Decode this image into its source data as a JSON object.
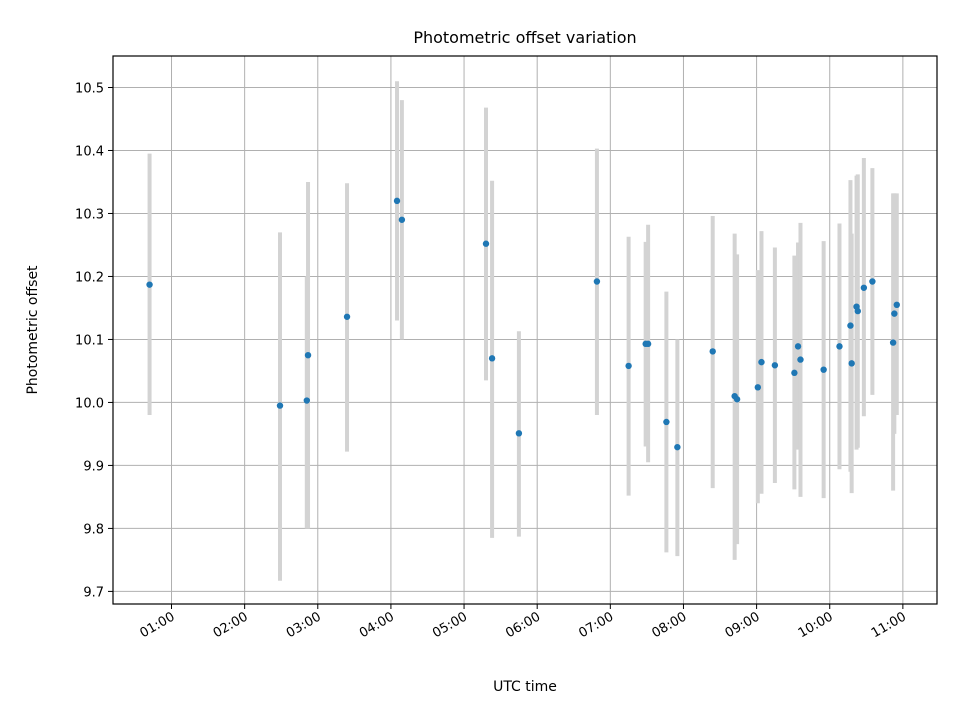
{
  "chart_data": {
    "type": "scatter",
    "title": "Photometric offset variation",
    "xlabel": "UTC time",
    "ylabel": "Photometric offset",
    "x_unit": "hours UTC",
    "xlim": [
      "00:12",
      "11:28"
    ],
    "ylim": [
      9.68,
      10.55
    ],
    "x_ticks": [
      "01:00",
      "02:00",
      "03:00",
      "04:00",
      "05:00",
      "06:00",
      "07:00",
      "08:00",
      "09:00",
      "10:00",
      "11:00"
    ],
    "y_ticks": [
      "9.7",
      "9.8",
      "9.9",
      "10.0",
      "10.1",
      "10.2",
      "10.3",
      "10.4",
      "10.5"
    ],
    "grid": true,
    "x_tick_rotation": 30,
    "colors": {
      "point": "#1f77b4",
      "errorbar": "#d3d3d3",
      "grid": "#b0b0b0"
    },
    "points": [
      {
        "x": "00:42",
        "y": 10.187,
        "ylo": 9.98,
        "yhi": 10.395
      },
      {
        "x": "02:29",
        "y": 9.995,
        "ylo": 9.717,
        "yhi": 10.27
      },
      {
        "x": "02:51",
        "y": 10.003,
        "ylo": 9.8,
        "yhi": 10.2
      },
      {
        "x": "02:52",
        "y": 10.075,
        "ylo": 9.8,
        "yhi": 10.35
      },
      {
        "x": "03:24",
        "y": 10.136,
        "ylo": 9.922,
        "yhi": 10.348
      },
      {
        "x": "04:05",
        "y": 10.32,
        "ylo": 10.13,
        "yhi": 10.51
      },
      {
        "x": "04:09",
        "y": 10.29,
        "ylo": 10.1,
        "yhi": 10.48
      },
      {
        "x": "05:18",
        "y": 10.252,
        "ylo": 10.035,
        "yhi": 10.468
      },
      {
        "x": "05:23",
        "y": 10.07,
        "ylo": 9.785,
        "yhi": 10.352
      },
      {
        "x": "05:45",
        "y": 9.951,
        "ylo": 9.787,
        "yhi": 10.113
      },
      {
        "x": "06:49",
        "y": 10.192,
        "ylo": 9.98,
        "yhi": 10.403
      },
      {
        "x": "07:15",
        "y": 10.058,
        "ylo": 9.852,
        "yhi": 10.263
      },
      {
        "x": "07:29",
        "y": 10.093,
        "ylo": 9.93,
        "yhi": 10.255
      },
      {
        "x": "07:31",
        "y": 10.093,
        "ylo": 9.905,
        "yhi": 10.282
      },
      {
        "x": "07:46",
        "y": 9.969,
        "ylo": 9.762,
        "yhi": 10.176
      },
      {
        "x": "07:55",
        "y": 9.929,
        "ylo": 9.756,
        "yhi": 10.1
      },
      {
        "x": "08:24",
        "y": 10.081,
        "ylo": 9.864,
        "yhi": 10.296
      },
      {
        "x": "08:42",
        "y": 10.01,
        "ylo": 9.75,
        "yhi": 10.268
      },
      {
        "x": "08:44",
        "y": 10.005,
        "ylo": 9.775,
        "yhi": 10.235
      },
      {
        "x": "09:01",
        "y": 10.024,
        "ylo": 9.84,
        "yhi": 10.21
      },
      {
        "x": "09:04",
        "y": 10.064,
        "ylo": 9.855,
        "yhi": 10.272
      },
      {
        "x": "09:15",
        "y": 10.059,
        "ylo": 9.872,
        "yhi": 10.246
      },
      {
        "x": "09:31",
        "y": 10.047,
        "ylo": 9.862,
        "yhi": 10.233
      },
      {
        "x": "09:34",
        "y": 10.089,
        "ylo": 9.925,
        "yhi": 10.254
      },
      {
        "x": "09:36",
        "y": 10.068,
        "ylo": 9.85,
        "yhi": 10.285
      },
      {
        "x": "09:55",
        "y": 10.052,
        "ylo": 9.848,
        "yhi": 10.256
      },
      {
        "x": "10:08",
        "y": 10.089,
        "ylo": 9.894,
        "yhi": 10.284
      },
      {
        "x": "10:17",
        "y": 10.122,
        "ylo": 9.89,
        "yhi": 10.353
      },
      {
        "x": "10:18",
        "y": 10.062,
        "ylo": 9.856,
        "yhi": 10.268
      },
      {
        "x": "10:22",
        "y": 10.152,
        "ylo": 9.925,
        "yhi": 10.36
      },
      {
        "x": "10:23",
        "y": 10.145,
        "ylo": 9.928,
        "yhi": 10.362
      },
      {
        "x": "10:28",
        "y": 10.182,
        "ylo": 9.978,
        "yhi": 10.388
      },
      {
        "x": "10:35",
        "y": 10.192,
        "ylo": 10.012,
        "yhi": 10.372
      },
      {
        "x": "10:52",
        "y": 10.095,
        "ylo": 9.86,
        "yhi": 10.332
      },
      {
        "x": "10:53",
        "y": 10.141,
        "ylo": 9.95,
        "yhi": 10.332
      },
      {
        "x": "10:55",
        "y": 10.155,
        "ylo": 9.98,
        "yhi": 10.332
      }
    ]
  }
}
